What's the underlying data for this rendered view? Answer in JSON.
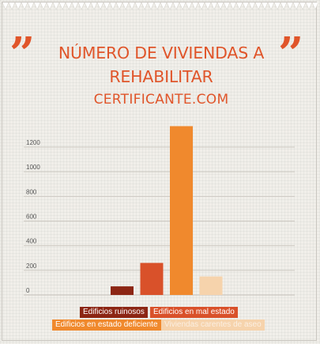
{
  "header": {
    "title": "NÚMERO DE VIVIENDAS A REHABILITAR",
    "subtitle": "CERTIFICANTE.COM",
    "quote_open": "”",
    "quote_close": "”"
  },
  "colors": {
    "accent": "#e0552a",
    "background": "#f1efea"
  },
  "chart_data": {
    "type": "bar",
    "title": "NÚMERO DE VIVIENDAS A REHABILITAR",
    "ylim": [
      0,
      1400
    ],
    "yticks": [
      0,
      200,
      400,
      600,
      800,
      1000,
      1200
    ],
    "grid": true,
    "legend_position": "bottom",
    "series": [
      {
        "name": "Edificios ruinosos",
        "value": 70,
        "color": "#8c2614"
      },
      {
        "name": "Edificios en mal estado",
        "value": 260,
        "color": "#d9512a"
      },
      {
        "name": "Edificios en estado deficiente",
        "value": 1370,
        "color": "#f0892d"
      },
      {
        "name": "Viviendas carentes de aseo",
        "value": 150,
        "color": "#f6d3ac"
      }
    ]
  }
}
